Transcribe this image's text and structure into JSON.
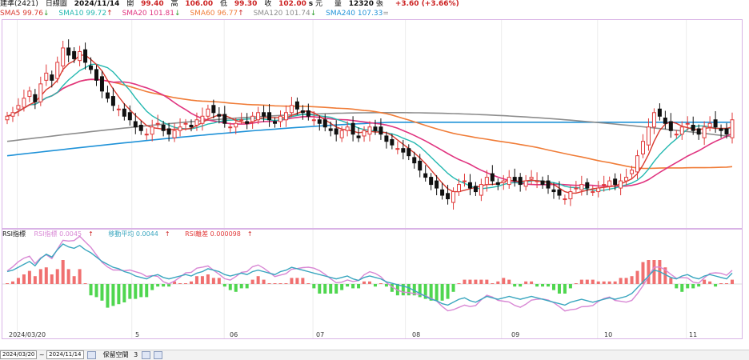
{
  "header": {
    "symbol": "建準(2421)",
    "period": "日線圖",
    "date": "2024/11/14",
    "open_label": "開",
    "open": "99.40",
    "high_label": "高",
    "high": "106.00",
    "low_label": "低",
    "low": "99.30",
    "close_label": "收",
    "close": "102.00",
    "close_flag": "s",
    "currency": "元",
    "vol_label": "量",
    "volume": "12320",
    "vol_unit": "張",
    "change": "+3.60 (+3.66%)"
  },
  "ma_legend": [
    {
      "label": "SMA5 99.76",
      "arrow": "↓",
      "color": "#d93a2f"
    },
    {
      "label": "SMA10 99.72",
      "arrow": "↑",
      "color": "#23b8b0"
    },
    {
      "label": "SMA20 101.81",
      "arrow": "↓",
      "color": "#e0337f"
    },
    {
      "label": "SMA60 96.77",
      "arrow": "↑",
      "color": "#f07c37"
    },
    {
      "label": "SMA120 101.74",
      "arrow": "↓",
      "color": "#8d8d8d"
    },
    {
      "label": "SMA240 107.33",
      "arrow": "=",
      "color": "#1f92d8"
    }
  ],
  "sub_legend": {
    "title": "RSI指標",
    "line1": "RSI指標 0.0045",
    "line1_arrow": "↑",
    "line1_color": "#d887d4",
    "line2": "移動平均 0.0044",
    "line2_arrow": "↑",
    "line2_color": "#3aa6bf",
    "line3": "RSI離差 0.000098",
    "line3_arrow": "↑",
    "line3_color": "#e23a3a"
  },
  "x_axis": {
    "labels": [
      "2024/03/20",
      "5",
      "06",
      "07",
      "08",
      "09",
      "10",
      "11"
    ]
  },
  "bottom": {
    "start": "2024/03/20",
    "end": "2024/11/14",
    "keep_label": "保留空間",
    "keep_value": "3"
  },
  "colors": {
    "up": "#e03a3a",
    "down": "#111111",
    "hist_up": "#f07070",
    "hist_down": "#4fd64f"
  },
  "chart_data": {
    "type": "candlestick",
    "closes": [
      103,
      104,
      106,
      108,
      110,
      107,
      112,
      115,
      113,
      118,
      122,
      120,
      119,
      121,
      118,
      116,
      113,
      110,
      108,
      106,
      105,
      103,
      102,
      100,
      99,
      98,
      100,
      101,
      99,
      98,
      99,
      100,
      101,
      100,
      102,
      103,
      105,
      104,
      103,
      101,
      100,
      101,
      102,
      101,
      103,
      104,
      103,
      102,
      101,
      103,
      104,
      106,
      105,
      104,
      103,
      102,
      101,
      100,
      99,
      98,
      99,
      100,
      98,
      97,
      99,
      100,
      99,
      98,
      96,
      95,
      94,
      93,
      92,
      90,
      88,
      86,
      84,
      83,
      81,
      80,
      82,
      84,
      85,
      83,
      82,
      84,
      86,
      85,
      84,
      85,
      86,
      85,
      84,
      85,
      86,
      85,
      84,
      83,
      82,
      81,
      80,
      82,
      83,
      84,
      83,
      82,
      83,
      84,
      85,
      84,
      85,
      86,
      88,
      92,
      96,
      100,
      104,
      103,
      101,
      99,
      98,
      100,
      101,
      99,
      98,
      100,
      101,
      100,
      99,
      98,
      102
    ]
  }
}
